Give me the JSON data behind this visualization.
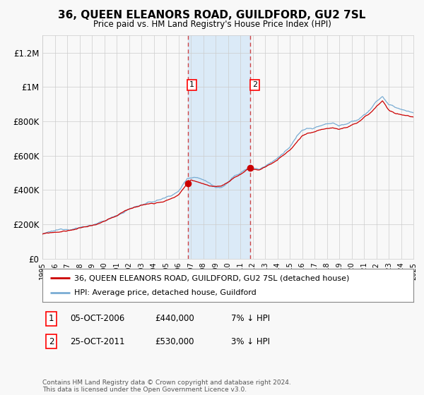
{
  "title": "36, QUEEN ELEANORS ROAD, GUILDFORD, GU2 7SL",
  "subtitle": "Price paid vs. HM Land Registry's House Price Index (HPI)",
  "legend_line1": "36, QUEEN ELEANORS ROAD, GUILDFORD, GU2 7SL (detached house)",
  "legend_line2": "HPI: Average price, detached house, Guildford",
  "sale1_label": "1",
  "sale1_date": "05-OCT-2006",
  "sale1_price": "£440,000",
  "sale1_hpi": "7% ↓ HPI",
  "sale1_year": 2006.75,
  "sale1_value": 440000,
  "sale2_label": "2",
  "sale2_date": "25-OCT-2011",
  "sale2_price": "£530,000",
  "sale2_hpi": "3% ↓ HPI",
  "sale2_year": 2011.8,
  "sale2_value": 530000,
  "footer": "Contains HM Land Registry data © Crown copyright and database right 2024.\nThis data is licensed under the Open Government Licence v3.0.",
  "hpi_color": "#7aadd4",
  "price_color": "#cc0000",
  "background_color": "#f8f8f8",
  "grid_color": "#cccccc",
  "highlight_color": "#dbeaf7",
  "ylim": [
    0,
    1300000
  ],
  "yticks": [
    0,
    200000,
    400000,
    600000,
    800000,
    1000000,
    1200000
  ],
  "ytick_labels": [
    "£0",
    "£200K",
    "£400K",
    "£600K",
    "£800K",
    "£1M",
    "£1.2M"
  ],
  "xstart": 1995,
  "xend": 2025
}
